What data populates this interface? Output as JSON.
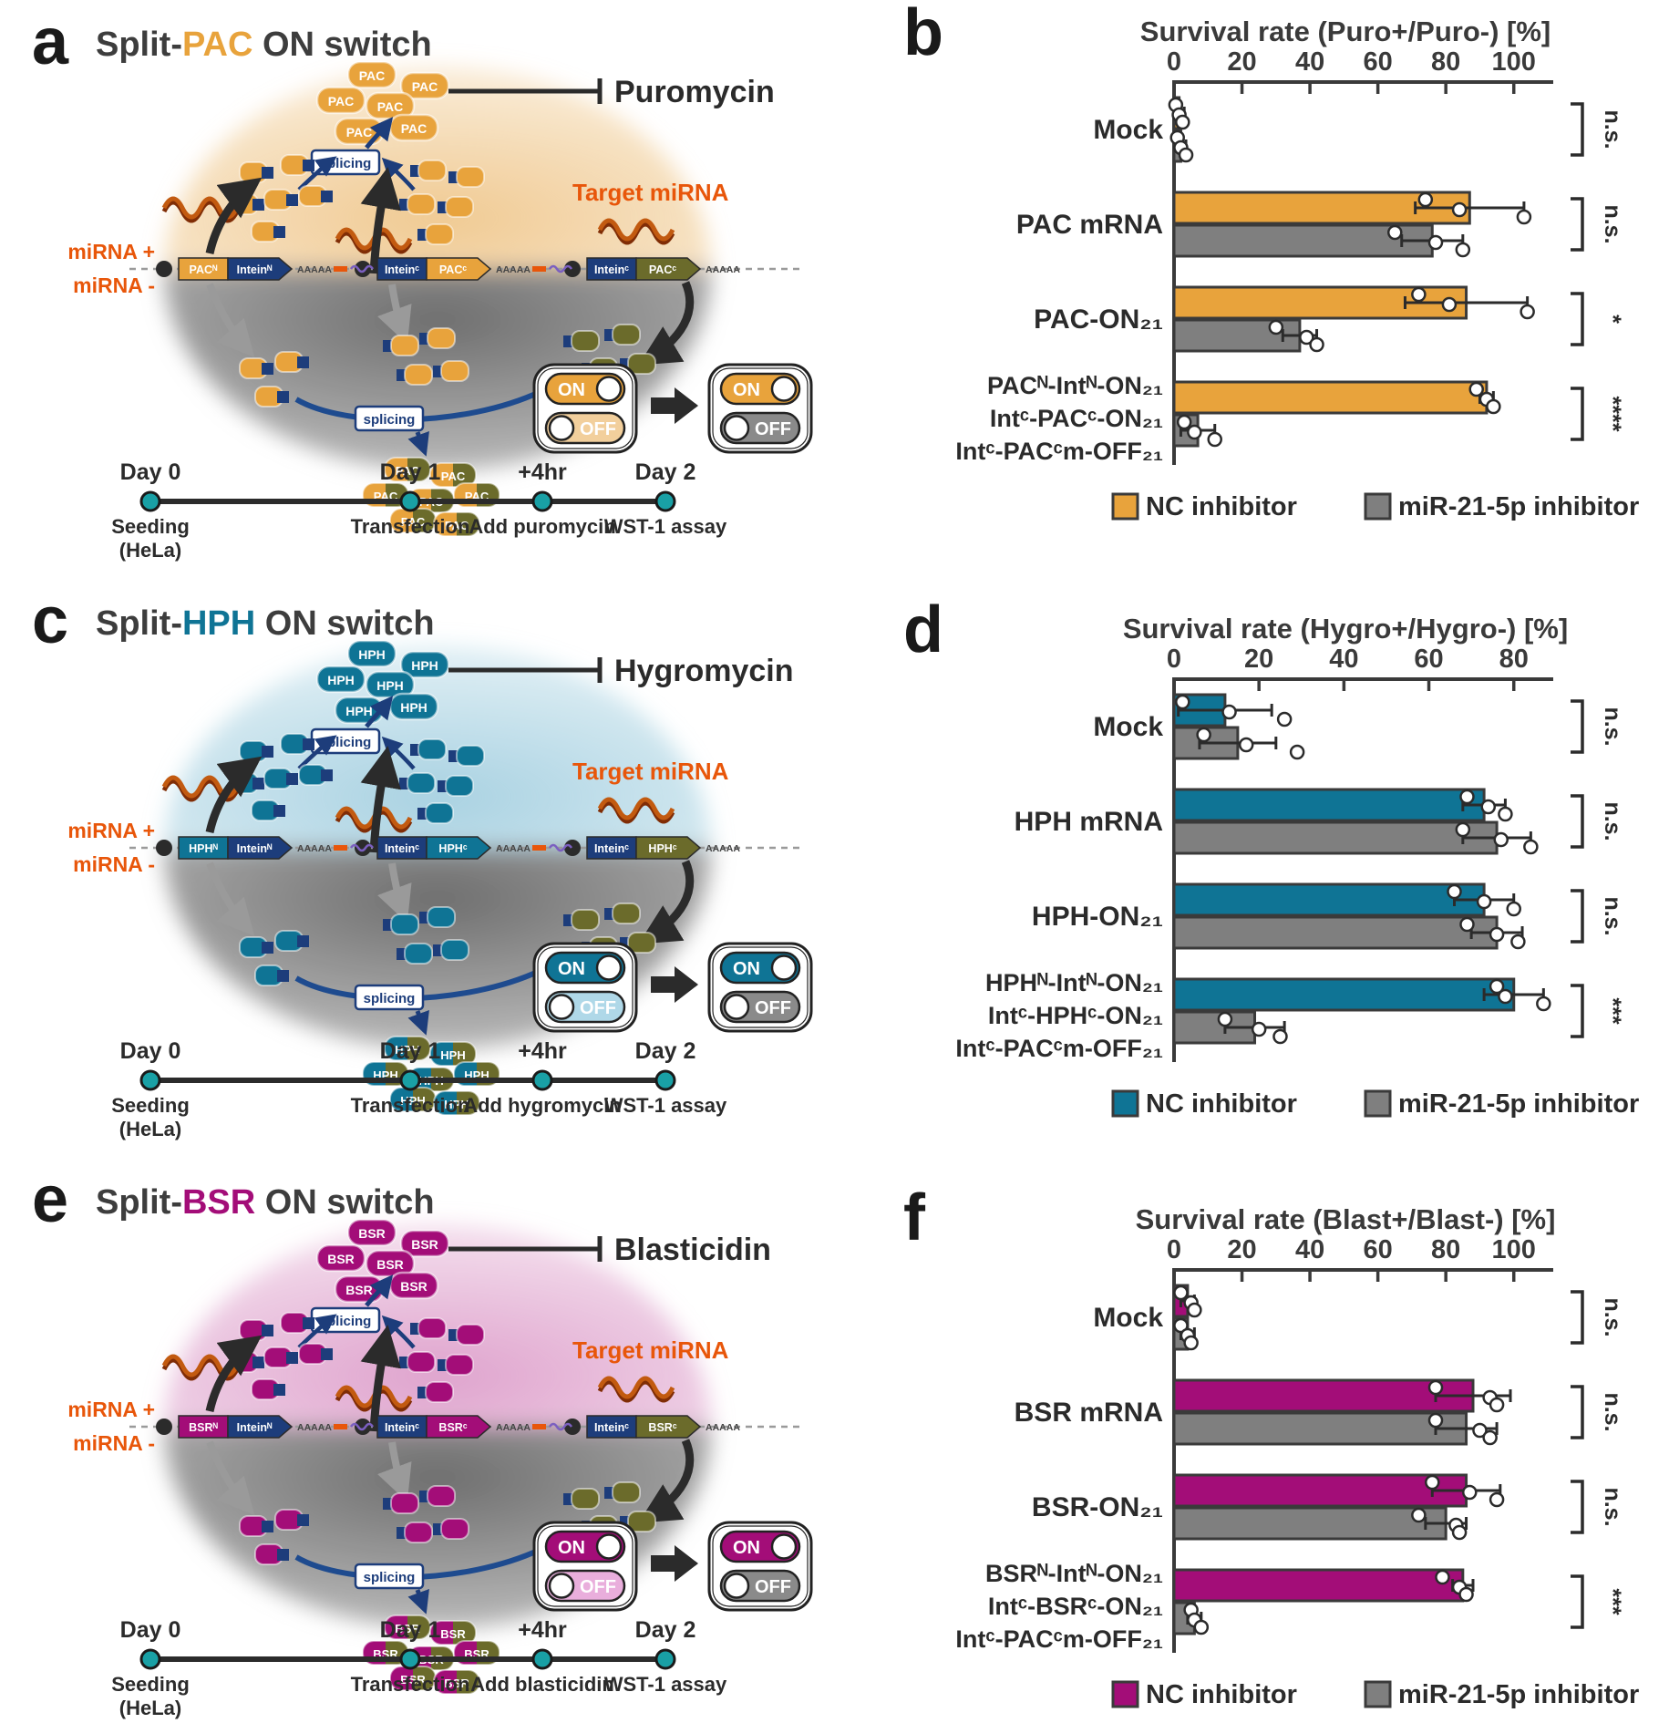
{
  "panels": {
    "a": {
      "letter": "a",
      "title": {
        "prefix": "Split-",
        "acronym": "PAC",
        "suffix": " ON switch"
      },
      "accent": "#E8A33C",
      "accent_pale": "#F2CF9C",
      "cell_top": "#F0CA92",
      "olive": "#6B6B2B",
      "drug": "Puromycin",
      "protein": "PAC",
      "labels": {
        "splicing": "splicing",
        "target_mirna": "Target miRNA",
        "mirna_plus": "miRNA +",
        "mirna_minus": "miRNA -",
        "on": "ON",
        "off": "OFF",
        "poly_a": "AAAAA"
      },
      "constructs": [
        {
          "left": "PACᴺ",
          "right": "Inteinᴺ"
        },
        {
          "left": "Inteinᶜ",
          "right": "PACᶜ"
        },
        {
          "left": "Inteinᶜ",
          "right": "PACᶜ"
        }
      ],
      "timeline": [
        {
          "time": "Day 0",
          "event_lines": [
            "Seeding",
            "(HeLa)"
          ]
        },
        {
          "time": "Day 1",
          "event_lines": [
            "Transfection"
          ]
        },
        {
          "time": "+4hr",
          "event_lines": [
            "Add puromycin"
          ]
        },
        {
          "time": "Day 2",
          "event_lines": [
            "WST-1 assay"
          ]
        }
      ]
    },
    "b": {
      "letter": "b",
      "chart_data": {
        "type": "bar",
        "orientation": "horizontal",
        "grid": false,
        "legend_position": "bottom",
        "title": "Survival rate (Puro+/Puro-) [%]",
        "xlim": [
          0,
          110
        ],
        "xticks": [
          0,
          20,
          40,
          60,
          80,
          100
        ],
        "categories": [
          "Mock",
          "PAC mRNA",
          "PAC-ON₂₁",
          [
            "PACᴺ-Intᴺ-ON₂₁",
            "Intᶜ-PACᶜ-ON₂₁",
            "Intᶜ-PACᶜm-OFF₂₁"
          ]
        ],
        "series": [
          {
            "name": "NC inhibitor",
            "color": "#E8A33C",
            "values": [
              1.5,
              87,
              86,
              92
            ],
            "errors": [
              1.5,
              16,
              18,
              2
            ],
            "points": [
              [
                0.5,
                1.5,
                2.5
              ],
              [
                74,
                84,
                103
              ],
              [
                72,
                81,
                104
              ],
              [
                89,
                92,
                94
              ]
            ]
          },
          {
            "name": "miR-21-5p inhibitor",
            "color": "#7F7F7F",
            "values": [
              2,
              76,
              37,
              7
            ],
            "errors": [
              1.5,
              9,
              5,
              5
            ],
            "points": [
              [
                1,
                2,
                3.5
              ],
              [
                65,
                77,
                85
              ],
              [
                30,
                39,
                42
              ],
              [
                3,
                6,
                12
              ]
            ]
          }
        ],
        "significance": [
          "n.s.",
          "n.s.",
          "*",
          "****"
        ]
      }
    },
    "c": {
      "letter": "c",
      "title": {
        "prefix": "Split-",
        "acronym": "HPH",
        "suffix": " ON switch"
      },
      "accent": "#0F7495",
      "accent_pale": "#AFD8E8",
      "cell_top": "#A9D2E2",
      "olive": "#6B6B2B",
      "drug": "Hygromycin",
      "protein": "HPH",
      "labels": {
        "splicing": "splicing",
        "target_mirna": "Target miRNA",
        "mirna_plus": "miRNA +",
        "mirna_minus": "miRNA -",
        "on": "ON",
        "off": "OFF",
        "poly_a": "AAAAA"
      },
      "constructs": [
        {
          "left": "HPHᴺ",
          "right": "Inteinᴺ"
        },
        {
          "left": "Inteinᶜ",
          "right": "HPHᶜ"
        },
        {
          "left": "Inteinᶜ",
          "right": "HPHᶜ"
        }
      ],
      "timeline": [
        {
          "time": "Day 0",
          "event_lines": [
            "Seeding",
            "(HeLa)"
          ]
        },
        {
          "time": "Day 1",
          "event_lines": [
            "Transfection"
          ]
        },
        {
          "time": "+4hr",
          "event_lines": [
            "Add hygromycin"
          ]
        },
        {
          "time": "Day 2",
          "event_lines": [
            "WST-1 assay"
          ]
        }
      ]
    },
    "d": {
      "letter": "d",
      "chart_data": {
        "type": "bar",
        "orientation": "horizontal",
        "grid": false,
        "legend_position": "bottom",
        "title": "Survival rate (Hygro+/Hygro-) [%]",
        "xlim": [
          0,
          88
        ],
        "xticks": [
          0,
          20,
          40,
          60,
          80
        ],
        "categories": [
          "Mock",
          "HPH mRNA",
          "HPH-ON₂₁",
          [
            "HPHᴺ-Intᴺ-ON₂₁",
            "Intᶜ-HPHᶜ-ON₂₁",
            "Intᶜ-PACᶜm-OFF₂₁"
          ]
        ],
        "series": [
          {
            "name": "NC inhibitor",
            "color": "#0F7495",
            "values": [
              12,
              73,
              73,
              80
            ],
            "errors": [
              11,
              5,
              7,
              7
            ],
            "points": [
              [
                2,
                13,
                26
              ],
              [
                69,
                74,
                78
              ],
              [
                66,
                73,
                80
              ],
              [
                76,
                78,
                87
              ]
            ]
          },
          {
            "name": "miR-21-5p inhibitor",
            "color": "#7F7F7F",
            "values": [
              15,
              76,
              76,
              19
            ],
            "errors": [
              9,
              8,
              6,
              7
            ],
            "points": [
              [
                7,
                17,
                29
              ],
              [
                68,
                77,
                84
              ],
              [
                69,
                76,
                81
              ],
              [
                12,
                20,
                25
              ]
            ]
          }
        ],
        "significance": [
          "n.s.",
          "n.s.",
          "n.s.",
          "***"
        ]
      }
    },
    "e": {
      "letter": "e",
      "title": {
        "prefix": "Split-",
        "acronym": "BSR",
        "suffix": " ON switch"
      },
      "accent": "#A30D78",
      "accent_pale": "#E9AEDC",
      "cell_top": "#DFA3CD",
      "olive": "#6B6B2B",
      "drug": "Blasticidin",
      "protein": "BSR",
      "labels": {
        "splicing": "splicing",
        "target_mirna": "Target miRNA",
        "mirna_plus": "miRNA +",
        "mirna_minus": "miRNA -",
        "on": "ON",
        "off": "OFF",
        "poly_a": "AAAAA"
      },
      "constructs": [
        {
          "left": "BSRᴺ",
          "right": "Inteinᴺ"
        },
        {
          "left": "Inteinᶜ",
          "right": "BSRᶜ"
        },
        {
          "left": "Inteinᶜ",
          "right": "BSRᶜ"
        }
      ],
      "timeline": [
        {
          "time": "Day 0",
          "event_lines": [
            "Seeding",
            "(HeLa)"
          ]
        },
        {
          "time": "Day 1",
          "event_lines": [
            "Transfection"
          ]
        },
        {
          "time": "+4hr",
          "event_lines": [
            "Add blasticidin"
          ]
        },
        {
          "time": "Day 2",
          "event_lines": [
            "WST-1 assay"
          ]
        }
      ]
    },
    "f": {
      "letter": "f",
      "chart_data": {
        "type": "bar",
        "orientation": "horizontal",
        "grid": false,
        "legend_position": "bottom",
        "title": "Survival rate (Blast+/Blast-) [%]",
        "xlim": [
          0,
          110
        ],
        "xticks": [
          0,
          20,
          40,
          60,
          80,
          100
        ],
        "categories": [
          "Mock",
          "BSR mRNA",
          "BSR-ON₂₁",
          [
            "BSRᴺ-Intᴺ-ON₂₁",
            "Intᶜ-BSRᶜ-ON₂₁",
            "Intᶜ-PACᶜm-OFF₂₁"
          ]
        ],
        "series": [
          {
            "name": "NC inhibitor",
            "color": "#A30D78",
            "values": [
              4,
              88,
              86,
              85
            ],
            "errors": [
              2,
              11,
              10,
              3
            ],
            "points": [
              [
                2,
                5,
                6
              ],
              [
                77,
                93,
                95
              ],
              [
                76,
                87,
                95
              ],
              [
                79,
                84,
                86
              ]
            ]
          },
          {
            "name": "miR-21-5p inhibitor",
            "color": "#7F7F7F",
            "values": [
              4,
              86,
              80,
              6
            ],
            "errors": [
              2,
              9,
              6,
              2
            ],
            "points": [
              [
                2,
                4,
                5
              ],
              [
                77,
                90,
                93
              ],
              [
                72,
                83,
                84
              ],
              [
                5,
                6,
                8
              ]
            ]
          }
        ],
        "significance": [
          "n.s.",
          "n.s.",
          "n.s.",
          "***"
        ]
      }
    }
  },
  "shared": {
    "navy": "#1D3D7B",
    "gray_off": "#8A8A8A",
    "timeline_dot": "#19A0A5",
    "mirna_text_color": "#E8560A",
    "axis_color": "#3A3A3A"
  }
}
